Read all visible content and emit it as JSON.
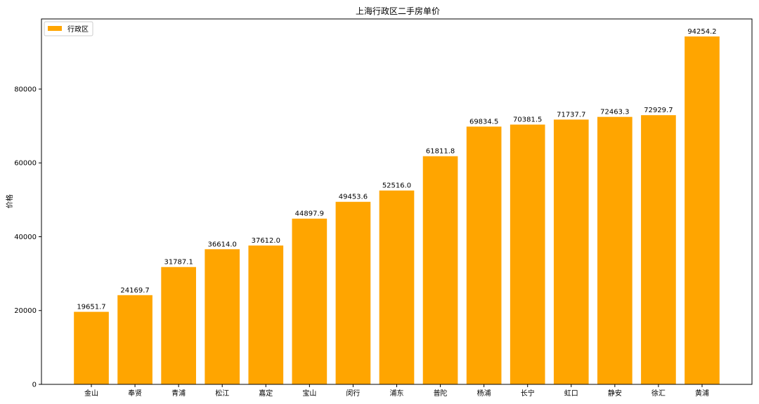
{
  "chart_data": {
    "type": "bar",
    "title": "上海行政区二手房单价",
    "xlabel": "",
    "ylabel": "价格",
    "categories": [
      "金山",
      "奉贤",
      "青浦",
      "松江",
      "嘉定",
      "宝山",
      "闵行",
      "浦东",
      "普陀",
      "杨浦",
      "长宁",
      "虹口",
      "静安",
      "徐汇",
      "黄浦"
    ],
    "values": [
      19651.7,
      24169.7,
      31787.1,
      36614.0,
      37612.0,
      44897.9,
      49453.6,
      52516.0,
      61811.8,
      69834.5,
      70381.5,
      71737.7,
      72463.3,
      72929.7,
      94254.2
    ],
    "data_labels": [
      "19651.7",
      "24169.7",
      "31787.1",
      "36614.0",
      "37612.0",
      "44897.9",
      "49453.6",
      "52516.0",
      "61811.8",
      "69834.5",
      "70381.5",
      "71737.7",
      "72463.3",
      "72929.7",
      "94254.2"
    ],
    "ylim": [
      0,
      99000
    ],
    "yticks": [
      0,
      20000,
      40000,
      60000,
      80000
    ],
    "ytick_labels": [
      "0",
      "20000",
      "40000",
      "60000",
      "80000"
    ],
    "series": [
      {
        "name": "行政区",
        "color": "#ffa500"
      }
    ],
    "legend_position": "top-left",
    "grid": false
  }
}
